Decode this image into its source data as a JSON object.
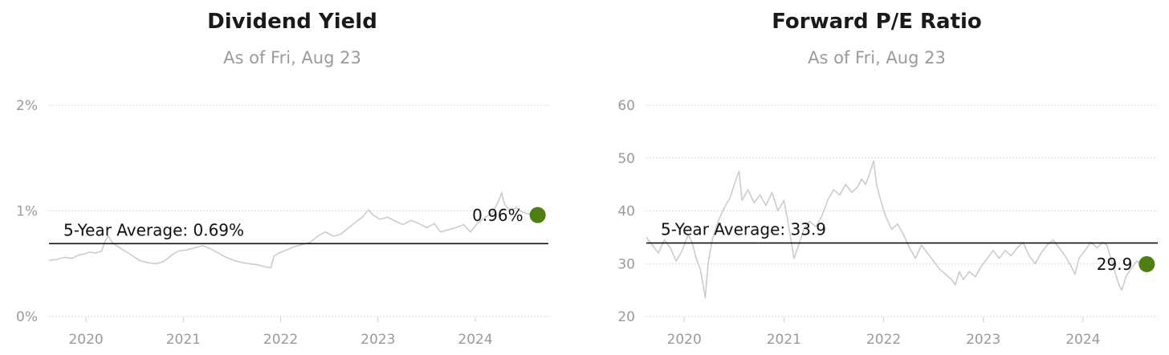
{
  "chart_data": [
    {
      "type": "line",
      "title": "Dividend Yield",
      "subtitle": "As of Fri, Aug 23",
      "y_ticks": [
        "0%",
        "1%",
        "2%"
      ],
      "x_ticks": [
        "2020",
        "2021",
        "2022",
        "2023",
        "2024"
      ],
      "ylim": [
        0,
        2
      ],
      "xlim": [
        2019.62,
        2024.75
      ],
      "grid": true,
      "unit": "%",
      "average": {
        "label": "5-Year Average: 0.69%",
        "value": 0.69
      },
      "latest": {
        "label": "0.96%",
        "x": 2024.64,
        "value": 0.96
      },
      "series": [
        {
          "color": "#cccccc",
          "points": [
            [
              2019.62,
              0.53
            ],
            [
              2019.7,
              0.54
            ],
            [
              2019.78,
              0.56
            ],
            [
              2019.86,
              0.55
            ],
            [
              2019.92,
              0.58
            ],
            [
              2019.98,
              0.59
            ],
            [
              2020.04,
              0.61
            ],
            [
              2020.1,
              0.6
            ],
            [
              2020.16,
              0.62
            ],
            [
              2020.2,
              0.72
            ],
            [
              2020.23,
              0.76
            ],
            [
              2020.27,
              0.7
            ],
            [
              2020.33,
              0.66
            ],
            [
              2020.4,
              0.62
            ],
            [
              2020.47,
              0.58
            ],
            [
              2020.55,
              0.53
            ],
            [
              2020.63,
              0.51
            ],
            [
              2020.72,
              0.5
            ],
            [
              2020.8,
              0.52
            ],
            [
              2020.88,
              0.58
            ],
            [
              2020.95,
              0.62
            ],
            [
              2021.03,
              0.63
            ],
            [
              2021.12,
              0.65
            ],
            [
              2021.2,
              0.67
            ],
            [
              2021.28,
              0.64
            ],
            [
              2021.36,
              0.6
            ],
            [
              2021.44,
              0.56
            ],
            [
              2021.52,
              0.53
            ],
            [
              2021.6,
              0.51
            ],
            [
              2021.68,
              0.5
            ],
            [
              2021.76,
              0.49
            ],
            [
              2021.84,
              0.47
            ],
            [
              2021.9,
              0.46
            ],
            [
              2021.93,
              0.57
            ],
            [
              2021.98,
              0.6
            ],
            [
              2022.06,
              0.63
            ],
            [
              2022.14,
              0.66
            ],
            [
              2022.22,
              0.68
            ],
            [
              2022.3,
              0.7
            ],
            [
              2022.38,
              0.76
            ],
            [
              2022.46,
              0.8
            ],
            [
              2022.54,
              0.76
            ],
            [
              2022.62,
              0.78
            ],
            [
              2022.7,
              0.84
            ],
            [
              2022.78,
              0.9
            ],
            [
              2022.84,
              0.94
            ],
            [
              2022.9,
              1.01
            ],
            [
              2022.95,
              0.96
            ],
            [
              2023.02,
              0.92
            ],
            [
              2023.1,
              0.94
            ],
            [
              2023.18,
              0.9
            ],
            [
              2023.26,
              0.87
            ],
            [
              2023.34,
              0.91
            ],
            [
              2023.42,
              0.88
            ],
            [
              2023.5,
              0.84
            ],
            [
              2023.58,
              0.88
            ],
            [
              2023.64,
              0.8
            ],
            [
              2023.72,
              0.82
            ],
            [
              2023.8,
              0.84
            ],
            [
              2023.88,
              0.87
            ],
            [
              2023.95,
              0.8
            ],
            [
              2024.02,
              0.88
            ],
            [
              2024.1,
              0.94
            ],
            [
              2024.18,
              0.98
            ],
            [
              2024.24,
              1.1
            ],
            [
              2024.27,
              1.17
            ],
            [
              2024.3,
              1.06
            ],
            [
              2024.36,
              1.0
            ],
            [
              2024.42,
              1.03
            ],
            [
              2024.48,
              0.99
            ],
            [
              2024.54,
              0.97
            ],
            [
              2024.6,
              0.98
            ],
            [
              2024.64,
              0.96
            ]
          ]
        }
      ]
    },
    {
      "type": "line",
      "title": "Forward P/E Ratio",
      "subtitle": "As of Fri, Aug 23",
      "y_ticks": [
        "20",
        "30",
        "40",
        "50",
        "60"
      ],
      "x_ticks": [
        "2020",
        "2021",
        "2022",
        "2023",
        "2024"
      ],
      "ylim": [
        20,
        60
      ],
      "xlim": [
        2019.62,
        2024.75
      ],
      "grid": true,
      "unit": "",
      "average": {
        "label": "5-Year Average: 33.9",
        "value": 33.9
      },
      "latest": {
        "label": "29.9",
        "x": 2024.64,
        "value": 29.9
      },
      "series": [
        {
          "color": "#cccccc",
          "points": [
            [
              2019.62,
              35.0
            ],
            [
              2019.68,
              33.5
            ],
            [
              2019.74,
              32.0
            ],
            [
              2019.8,
              34.5
            ],
            [
              2019.86,
              33.0
            ],
            [
              2019.92,
              30.5
            ],
            [
              2019.98,
              32.5
            ],
            [
              2020.04,
              35.5
            ],
            [
              2020.08,
              34.0
            ],
            [
              2020.12,
              31.0
            ],
            [
              2020.16,
              29.0
            ],
            [
              2020.19,
              26.0
            ],
            [
              2020.21,
              23.5
            ],
            [
              2020.24,
              30.0
            ],
            [
              2020.28,
              34.5
            ],
            [
              2020.34,
              38.0
            ],
            [
              2020.4,
              40.5
            ],
            [
              2020.46,
              42.5
            ],
            [
              2020.52,
              46.0
            ],
            [
              2020.55,
              47.5
            ],
            [
              2020.58,
              42.0
            ],
            [
              2020.64,
              44.0
            ],
            [
              2020.7,
              41.5
            ],
            [
              2020.76,
              43.0
            ],
            [
              2020.82,
              41.0
            ],
            [
              2020.88,
              43.5
            ],
            [
              2020.94,
              40.0
            ],
            [
              2021.0,
              42.0
            ],
            [
              2021.04,
              38.0
            ],
            [
              2021.08,
              33.5
            ],
            [
              2021.1,
              31.0
            ],
            [
              2021.14,
              33.0
            ],
            [
              2021.2,
              36.5
            ],
            [
              2021.26,
              38.0
            ],
            [
              2021.32,
              37.0
            ],
            [
              2021.38,
              39.0
            ],
            [
              2021.44,
              42.0
            ],
            [
              2021.5,
              44.0
            ],
            [
              2021.56,
              43.0
            ],
            [
              2021.62,
              45.0
            ],
            [
              2021.68,
              43.5
            ],
            [
              2021.74,
              44.5
            ],
            [
              2021.78,
              46.0
            ],
            [
              2021.82,
              45.0
            ],
            [
              2021.86,
              47.0
            ],
            [
              2021.9,
              49.5
            ],
            [
              2021.93,
              45.0
            ],
            [
              2021.97,
              42.0
            ],
            [
              2022.02,
              39.0
            ],
            [
              2022.08,
              36.5
            ],
            [
              2022.14,
              37.5
            ],
            [
              2022.2,
              35.5
            ],
            [
              2022.26,
              33.0
            ],
            [
              2022.32,
              31.0
            ],
            [
              2022.38,
              33.5
            ],
            [
              2022.44,
              32.0
            ],
            [
              2022.5,
              30.5
            ],
            [
              2022.56,
              29.0
            ],
            [
              2022.62,
              28.0
            ],
            [
              2022.68,
              27.0
            ],
            [
              2022.72,
              26.0
            ],
            [
              2022.76,
              28.5
            ],
            [
              2022.8,
              27.0
            ],
            [
              2022.86,
              28.5
            ],
            [
              2022.92,
              27.5
            ],
            [
              2022.98,
              29.5
            ],
            [
              2023.04,
              31.0
            ],
            [
              2023.1,
              32.5
            ],
            [
              2023.16,
              31.0
            ],
            [
              2023.22,
              32.5
            ],
            [
              2023.28,
              31.5
            ],
            [
              2023.34,
              33.0
            ],
            [
              2023.4,
              34.0
            ],
            [
              2023.46,
              31.5
            ],
            [
              2023.52,
              30.0
            ],
            [
              2023.58,
              32.0
            ],
            [
              2023.64,
              33.5
            ],
            [
              2023.7,
              34.5
            ],
            [
              2023.76,
              33.0
            ],
            [
              2023.82,
              31.5
            ],
            [
              2023.88,
              29.5
            ],
            [
              2023.92,
              28.0
            ],
            [
              2023.96,
              31.0
            ],
            [
              2024.02,
              32.5
            ],
            [
              2024.08,
              34.0
            ],
            [
              2024.14,
              33.0
            ],
            [
              2024.2,
              34.0
            ],
            [
              2024.24,
              33.5
            ],
            [
              2024.28,
              31.0
            ],
            [
              2024.32,
              28.5
            ],
            [
              2024.36,
              26.0
            ],
            [
              2024.39,
              25.0
            ],
            [
              2024.43,
              27.5
            ],
            [
              2024.48,
              29.0
            ],
            [
              2024.54,
              30.5
            ],
            [
              2024.6,
              30.0
            ],
            [
              2024.64,
              29.9
            ]
          ]
        }
      ]
    }
  ],
  "colors": {
    "line": "#cccccc",
    "average": "#111111",
    "marker": "#4f7f12",
    "grid": "#d9d9d9"
  }
}
